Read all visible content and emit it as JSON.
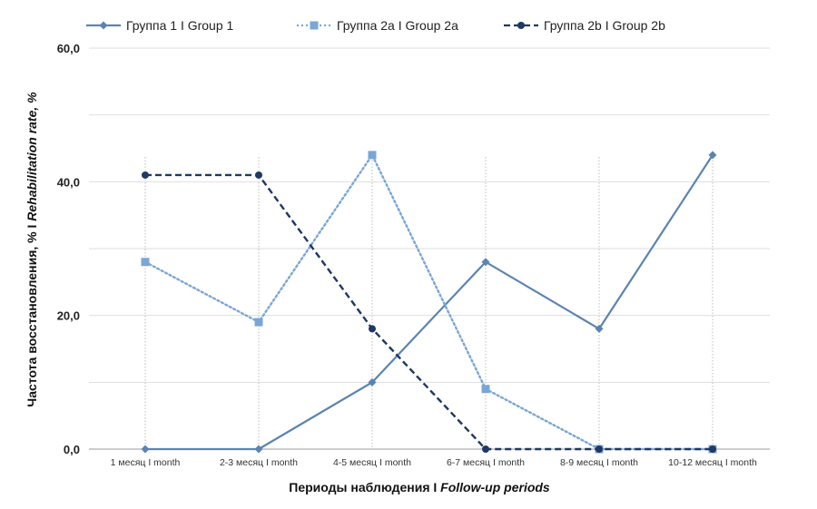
{
  "chart_data": {
    "type": "line",
    "categories": [
      "1 месяц I month",
      "2-3 месяц I month",
      "4-5 месяц I month",
      "6-7 месяц I month",
      "8-9 месяц I month",
      "10-12 месяц I month"
    ],
    "series": [
      {
        "name": "Группа 1 I Group 1",
        "values": [
          0,
          0,
          10,
          28,
          18,
          44
        ],
        "color": "#5b84b1",
        "line_style": "solid",
        "marker": "diamond"
      },
      {
        "name": "Группа 2а I Group 2a",
        "values": [
          28,
          19,
          44,
          9,
          0,
          0
        ],
        "color": "#7aa6d6",
        "line_style": "dotted",
        "marker": "square"
      },
      {
        "name": "Группа 2b I Group 2b",
        "values": [
          41,
          41,
          18,
          0,
          0,
          0
        ],
        "color": "#1f3864",
        "line_style": "dashed",
        "marker": "circle"
      }
    ],
    "xlabel_main": "Периоды наблюдения I ",
    "xlabel_italic": "Follow-up periods",
    "ylabel_main": "Частота восстановления, % I ",
    "ylabel_italic": "Rehabilitation rate, %",
    "ylim": [
      0,
      60
    ],
    "yticks": [
      "0,0",
      "20,0",
      "40,0",
      "60,0"
    ],
    "ytick_values": [
      0,
      20,
      40,
      60
    ],
    "grid": true,
    "legend_position": "top"
  }
}
